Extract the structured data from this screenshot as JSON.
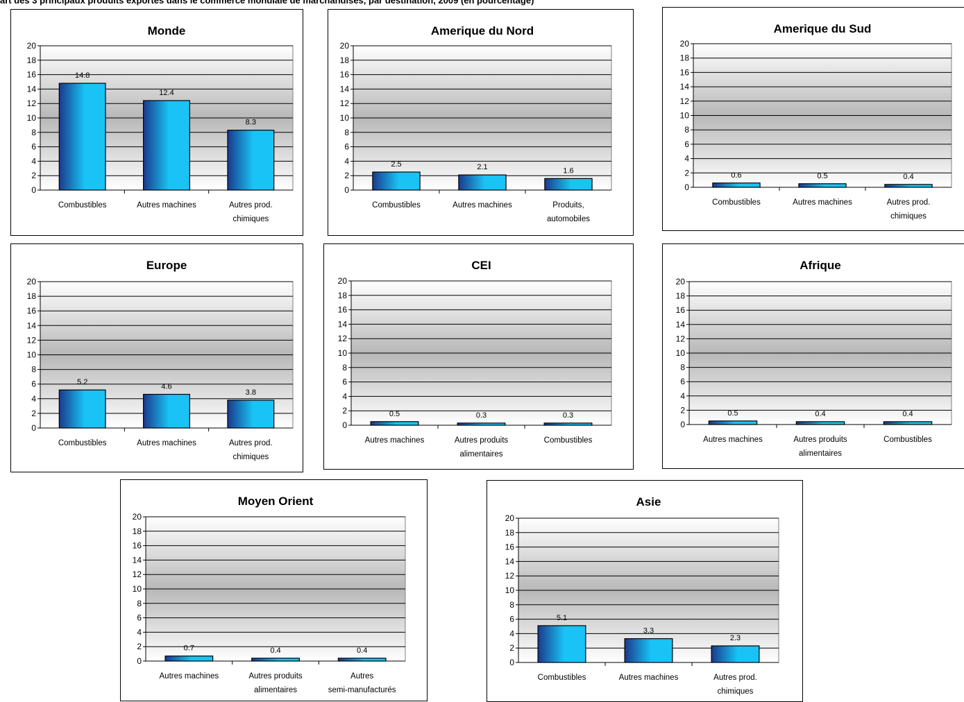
{
  "page": {
    "title": "art des 3 principaux produits exportés dans le commerce mondiale de marchandises, par destination, 2009  (en pourcentage)"
  },
  "colors": {
    "bar_dark": "#1a3a8c",
    "bar_light": "#19c3f5",
    "plot_mid": "#b8b8b8",
    "plot_edge": "#ffffff"
  },
  "chart_data": [
    {
      "id": "monde",
      "type": "bar",
      "title": "Monde",
      "ylim": [
        0,
        20
      ],
      "yticks": [
        0,
        2,
        4,
        6,
        8,
        10,
        12,
        14,
        16,
        18,
        20
      ],
      "categories": [
        "Combustibles",
        "Autres machines",
        "Autres prod. chimiques"
      ],
      "values": [
        14.8,
        12.4,
        8.3
      ],
      "data_labels": [
        "14.8",
        "12.4",
        "8.3"
      ],
      "grid": true,
      "legend": "none"
    },
    {
      "id": "amerique-nord",
      "type": "bar",
      "title": "Amerique du Nord",
      "ylim": [
        0,
        20
      ],
      "yticks": [
        0,
        2,
        4,
        6,
        8,
        10,
        12,
        14,
        16,
        18,
        20
      ],
      "categories": [
        "Combustibles",
        "Autres machines",
        "Produits, automobiles"
      ],
      "values": [
        2.5,
        2.1,
        1.6
      ],
      "data_labels": [
        "2.5",
        "2.1",
        "1.6"
      ],
      "grid": true,
      "legend": "none"
    },
    {
      "id": "amerique-sud",
      "type": "bar",
      "title": "Amerique du Sud",
      "ylim": [
        0,
        20
      ],
      "yticks": [
        0,
        2,
        4,
        6,
        8,
        10,
        12,
        14,
        16,
        18,
        20
      ],
      "categories": [
        "Combustibles",
        "Autres machines",
        "Autres prod. chimiques"
      ],
      "values": [
        0.6,
        0.5,
        0.4
      ],
      "data_labels": [
        "0.6",
        "0.5",
        "0.4"
      ],
      "grid": true,
      "legend": "none"
    },
    {
      "id": "europe",
      "type": "bar",
      "title": "Europe",
      "ylim": [
        0,
        20
      ],
      "yticks": [
        0,
        2,
        4,
        6,
        8,
        10,
        12,
        14,
        16,
        18,
        20
      ],
      "categories": [
        "Combustibles",
        "Autres machines",
        "Autres prod. chimiques"
      ],
      "values": [
        5.2,
        4.6,
        3.8
      ],
      "data_labels": [
        "5.2",
        "4.6",
        "3.8"
      ],
      "grid": true,
      "legend": "none"
    },
    {
      "id": "cei",
      "type": "bar",
      "title": "CEI",
      "ylim": [
        0,
        20
      ],
      "yticks": [
        0,
        2,
        4,
        6,
        8,
        10,
        12,
        14,
        16,
        18,
        20
      ],
      "categories": [
        "Autres machines",
        "Autres produits alimentaires",
        "Combustibles"
      ],
      "values": [
        0.5,
        0.3,
        0.3
      ],
      "data_labels": [
        "0.5",
        "0.3",
        "0.3"
      ],
      "grid": true,
      "legend": "none"
    },
    {
      "id": "afrique",
      "type": "bar",
      "title": "Afrique",
      "ylim": [
        0,
        20
      ],
      "yticks": [
        0,
        2,
        4,
        6,
        8,
        10,
        12,
        14,
        16,
        18,
        20
      ],
      "categories": [
        "Autres machines",
        "Autres produits alimentaires",
        "Combustibles"
      ],
      "values": [
        0.5,
        0.4,
        0.4
      ],
      "data_labels": [
        "0.5",
        "0.4",
        "0.4"
      ],
      "grid": true,
      "legend": "none"
    },
    {
      "id": "moyen-orient",
      "type": "bar",
      "title": "Moyen Orient",
      "ylim": [
        0,
        20
      ],
      "yticks": [
        0,
        2,
        4,
        6,
        8,
        10,
        12,
        14,
        16,
        18,
        20
      ],
      "categories": [
        "Autres machines",
        "Autres produits alimentaires",
        "Autres semi-manufacturés"
      ],
      "values": [
        0.7,
        0.4,
        0.4
      ],
      "data_labels": [
        "0.7",
        "0.4",
        "0.4"
      ],
      "grid": true,
      "legend": "none"
    },
    {
      "id": "asie",
      "type": "bar",
      "title": "Asie",
      "ylim": [
        0,
        20
      ],
      "yticks": [
        0,
        2,
        4,
        6,
        8,
        10,
        12,
        14,
        16,
        18,
        20
      ],
      "categories": [
        "Combustibles",
        "Autres machines",
        "Autres prod. chimiques"
      ],
      "values": [
        5.1,
        3.3,
        2.3
      ],
      "data_labels": [
        "5.1",
        "3.3",
        "2.3"
      ],
      "grid": true,
      "legend": "none"
    }
  ]
}
